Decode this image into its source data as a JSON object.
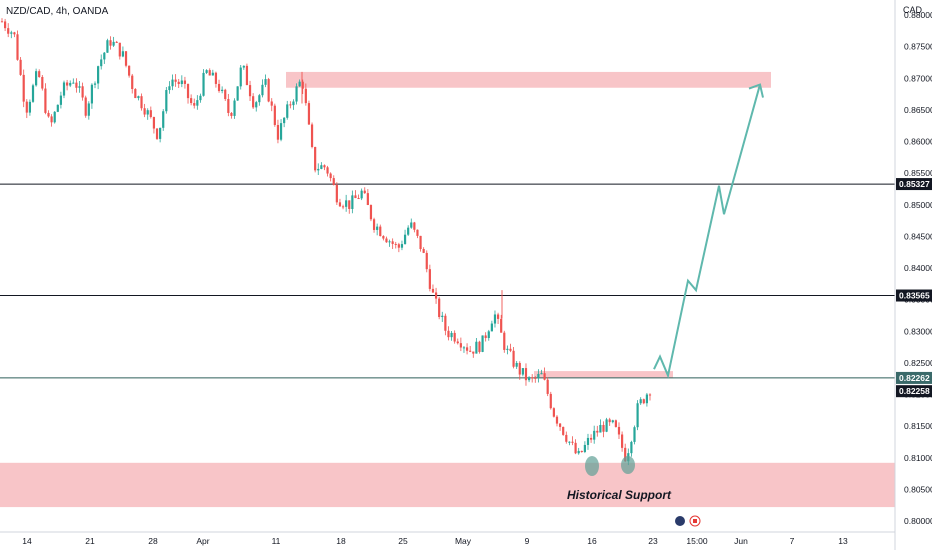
{
  "header": {
    "symbol": "NZD/CAD, 4h, OANDA",
    "currency": "CAD"
  },
  "colors": {
    "up": "#26a69a",
    "down": "#ef5350",
    "zone": "#f8c5c8",
    "arrow": "#5fb8ad",
    "hline": "#131722",
    "tag_bg": "#131722",
    "tag_hi": "#3a6a6a"
  },
  "chart_data": {
    "type": "candlestick",
    "title": "NZD/CAD, 4h, OANDA",
    "x_ticks": [
      "14",
      "21",
      "28",
      "Apr",
      "11",
      "18",
      "25",
      "May",
      "9",
      "16",
      "23",
      "15:00",
      "Jun",
      "7",
      "13"
    ],
    "y_ticks": [
      "0.88000",
      "0.87500",
      "0.87000",
      "0.86500",
      "0.86000",
      "0.85500",
      "0.85000",
      "0.84500",
      "0.84000",
      "0.83500",
      "0.83000",
      "0.82500",
      "0.82000",
      "0.81500",
      "0.81000",
      "0.80500",
      "0.80000"
    ],
    "ylim": [
      0.7985,
      0.8838
    ],
    "horizontal_levels": [
      {
        "value": 0.85327,
        "label": "0.85327"
      },
      {
        "value": 0.83565,
        "label": "0.83565"
      },
      {
        "value": 0.82262,
        "label": "0.82262"
      }
    ],
    "price_tags": [
      {
        "value": 0.82262,
        "label": "0.82262"
      },
      {
        "value": 0.82258,
        "label": "0.82258"
      }
    ],
    "zones": [
      {
        "name": "resistance",
        "y_top": 0.871,
        "y_bottom": 0.8685
      },
      {
        "name": "breakout",
        "y_top": 0.8237,
        "y_bottom": 0.8227
      },
      {
        "name": "support",
        "y_top": 0.8092,
        "y_bottom": 0.8022,
        "label": "Historical Support"
      }
    ],
    "projection_path": [
      0.824,
      0.826,
      0.823,
      0.838,
      0.8365,
      0.853,
      0.8485,
      0.869
    ],
    "price_path": [
      0.879,
      0.877,
      0.865,
      0.871,
      0.862,
      0.868,
      0.87,
      0.865,
      0.872,
      0.876,
      0.874,
      0.868,
      0.865,
      0.861,
      0.87,
      0.869,
      0.865,
      0.871,
      0.869,
      0.864,
      0.872,
      0.866,
      0.869,
      0.861,
      0.866,
      0.87,
      0.856,
      0.856,
      0.851,
      0.85,
      0.852,
      0.847,
      0.845,
      0.843,
      0.847,
      0.843,
      0.835,
      0.83,
      0.829,
      0.827,
      0.828,
      0.833,
      0.827,
      0.824,
      0.822,
      0.823,
      0.817,
      0.8135,
      0.81,
      0.813,
      0.815,
      0.815,
      0.81,
      0.818,
      0.821
    ]
  },
  "annotations": {
    "support_label": "Historical Support"
  }
}
